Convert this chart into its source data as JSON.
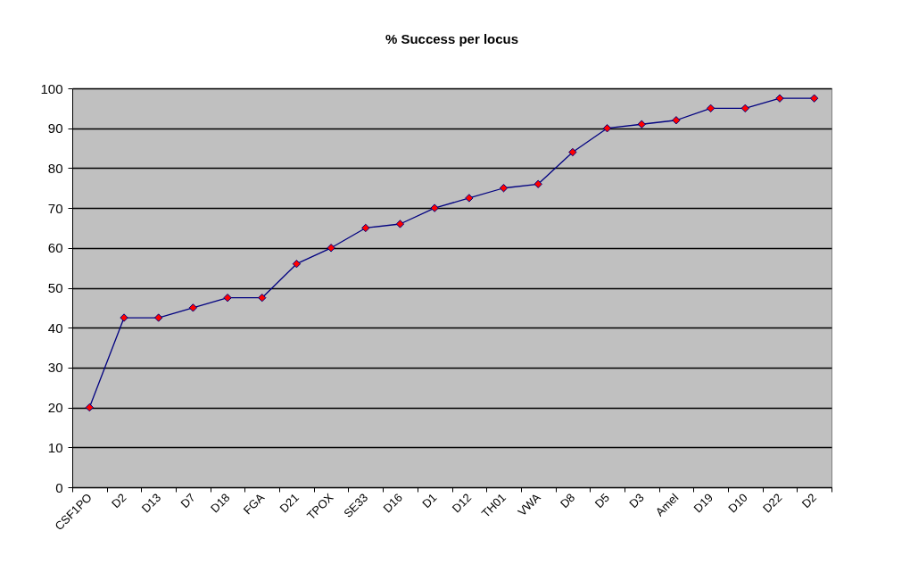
{
  "chart_data": {
    "type": "line",
    "title": "% Success per locus",
    "categories": [
      "CSF1PO",
      "D2",
      "D13",
      "D7",
      "D18",
      "FGA",
      "D21",
      "TPOX",
      "SE33",
      "D16",
      "D1",
      "D12",
      "TH01",
      "VWA",
      "D8",
      "D5",
      "D3",
      "Amel",
      "D19",
      "D10",
      "D22",
      "D2"
    ],
    "series": [
      {
        "color": "#000080",
        "values": [
          20,
          42.5,
          42.5,
          45,
          47.5,
          47.5,
          56,
          60,
          65,
          66,
          70,
          72.5,
          75,
          76,
          84,
          90,
          91,
          92,
          95,
          95,
          97.5,
          97.5
        ]
      }
    ],
    "ylim": [
      0,
      100
    ],
    "yticks": [
      0,
      10,
      20,
      30,
      40,
      50,
      60,
      70,
      80,
      90,
      100
    ],
    "grid": "y",
    "marker": "diamond"
  }
}
